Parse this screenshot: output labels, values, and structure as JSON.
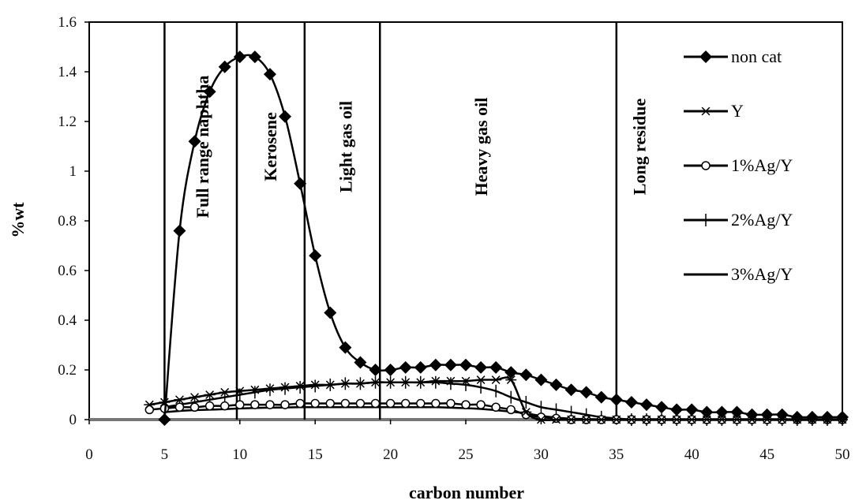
{
  "chart_data": {
    "type": "line",
    "xlabel": "carbon number",
    "ylabel": "%wt",
    "xlim": [
      0,
      50
    ],
    "ylim": [
      0,
      1.6
    ],
    "x_ticks": [
      "0",
      "5",
      "10",
      "15",
      "20",
      "25",
      "30",
      "35",
      "40",
      "45",
      "50"
    ],
    "y_ticks": [
      "0",
      "0.2",
      "0.4",
      "0.6",
      "0.8",
      "1",
      "1.2",
      "1.4",
      "1.6"
    ],
    "grid": false,
    "legend_position": "right",
    "boundaries": [
      5,
      9.8,
      14.3,
      19.3,
      35
    ],
    "regions": [
      {
        "label": "Full range naphtha",
        "x": 7.5
      },
      {
        "label": "Kerosene",
        "x": 12
      },
      {
        "label": "Light gas oil",
        "x": 17
      },
      {
        "label": "Heavy gas oil",
        "x": 26
      },
      {
        "label": "Long residue",
        "x": 36.5
      }
    ],
    "series": [
      {
        "name": "non cat",
        "marker": "diamond",
        "x": [
          5,
          6,
          7,
          8,
          9,
          10,
          11,
          12,
          13,
          14,
          15,
          16,
          17,
          18,
          19,
          20,
          21,
          22,
          23,
          24,
          25,
          26,
          27,
          28,
          29,
          30,
          31,
          32,
          33,
          34,
          35,
          36,
          37,
          38,
          39,
          40,
          41,
          42,
          43,
          44,
          45,
          46,
          47,
          48,
          49,
          50
        ],
        "y": [
          0,
          0.76,
          1.12,
          1.32,
          1.42,
          1.46,
          1.46,
          1.39,
          1.22,
          0.95,
          0.66,
          0.43,
          0.29,
          0.23,
          0.2,
          0.2,
          0.21,
          0.21,
          0.22,
          0.22,
          0.22,
          0.21,
          0.21,
          0.19,
          0.18,
          0.16,
          0.14,
          0.12,
          0.11,
          0.09,
          0.08,
          0.07,
          0.06,
          0.05,
          0.04,
          0.04,
          0.03,
          0.03,
          0.03,
          0.02,
          0.02,
          0.02,
          0.01,
          0.01,
          0.01,
          0.01
        ]
      },
      {
        "name": "Y",
        "marker": "asterisk",
        "x": [
          4,
          5,
          6,
          7,
          8,
          9,
          10,
          11,
          12,
          13,
          14,
          15,
          16,
          17,
          18,
          19,
          20,
          21,
          22,
          23,
          24,
          25,
          26,
          27,
          28,
          29,
          30,
          31,
          32,
          33,
          34,
          35,
          36,
          37,
          38,
          39,
          40,
          41,
          42,
          43,
          44,
          45,
          46,
          47,
          48,
          49,
          50
        ],
        "y": [
          0.06,
          0.07,
          0.08,
          0.09,
          0.1,
          0.11,
          0.115,
          0.12,
          0.125,
          0.13,
          0.135,
          0.14,
          0.14,
          0.145,
          0.145,
          0.15,
          0.15,
          0.15,
          0.15,
          0.155,
          0.155,
          0.155,
          0.16,
          0.16,
          0.16,
          0.03,
          0,
          0,
          0,
          0,
          0,
          0,
          0,
          0,
          0,
          0,
          0,
          0,
          0,
          0,
          0,
          0,
          0,
          0,
          0,
          0,
          0
        ]
      },
      {
        "name": "1%Ag/Y",
        "marker": "circle",
        "x": [
          4,
          5,
          6,
          7,
          8,
          9,
          10,
          11,
          12,
          13,
          14,
          15,
          16,
          17,
          18,
          19,
          20,
          21,
          22,
          23,
          24,
          25,
          26,
          27,
          28,
          29,
          30,
          31,
          32,
          33,
          34,
          35,
          36,
          37,
          38,
          39,
          40,
          41,
          42,
          43,
          44,
          45,
          46,
          47,
          48,
          49,
          50
        ],
        "y": [
          0.04,
          0.045,
          0.05,
          0.05,
          0.055,
          0.055,
          0.06,
          0.06,
          0.06,
          0.06,
          0.065,
          0.065,
          0.065,
          0.065,
          0.065,
          0.065,
          0.065,
          0.065,
          0.065,
          0.065,
          0.065,
          0.06,
          0.06,
          0.05,
          0.04,
          0.02,
          0.01,
          0.005,
          0,
          0,
          0,
          0,
          0,
          0,
          0,
          0,
          0,
          0,
          0,
          0,
          0,
          0,
          0,
          0,
          0,
          0,
          0
        ]
      },
      {
        "name": "2%Ag/Y",
        "marker": "plus",
        "x": [
          5,
          6,
          7,
          8,
          9,
          10,
          11,
          12,
          13,
          14,
          15,
          16,
          17,
          18,
          19,
          20,
          21,
          22,
          23,
          24,
          25,
          26,
          27,
          28,
          29,
          30,
          31,
          32,
          33,
          34,
          35,
          36,
          37,
          38,
          39,
          40,
          41,
          42,
          43,
          44,
          45,
          46,
          47,
          48,
          49,
          50
        ],
        "y": [
          0.05,
          0.06,
          0.07,
          0.08,
          0.09,
          0.1,
          0.11,
          0.12,
          0.125,
          0.13,
          0.135,
          0.14,
          0.145,
          0.145,
          0.15,
          0.15,
          0.15,
          0.15,
          0.15,
          0.145,
          0.14,
          0.13,
          0.115,
          0.09,
          0.07,
          0.05,
          0.04,
          0.03,
          0.02,
          0.01,
          0.005,
          0,
          0,
          0,
          0,
          0,
          0,
          0,
          0,
          0,
          0,
          0,
          0,
          0,
          0,
          0
        ]
      },
      {
        "name": "3%Ag/Y",
        "marker": "none",
        "x": [
          5,
          6,
          7,
          8,
          9,
          10,
          11,
          12,
          13,
          14,
          15,
          16,
          17,
          18,
          19,
          20,
          21,
          22,
          23,
          24,
          25,
          26,
          27,
          28,
          29,
          30,
          31,
          32,
          33,
          34,
          35,
          36,
          37,
          38,
          39,
          40,
          45,
          50
        ],
        "y": [
          0.03,
          0.035,
          0.038,
          0.04,
          0.042,
          0.045,
          0.047,
          0.048,
          0.049,
          0.05,
          0.05,
          0.05,
          0.05,
          0.05,
          0.05,
          0.05,
          0.05,
          0.05,
          0.05,
          0.048,
          0.046,
          0.043,
          0.038,
          0.032,
          0.025,
          0.015,
          0.008,
          0.004,
          0.002,
          0,
          0,
          0,
          0,
          0,
          0,
          0,
          0,
          0
        ]
      }
    ]
  }
}
